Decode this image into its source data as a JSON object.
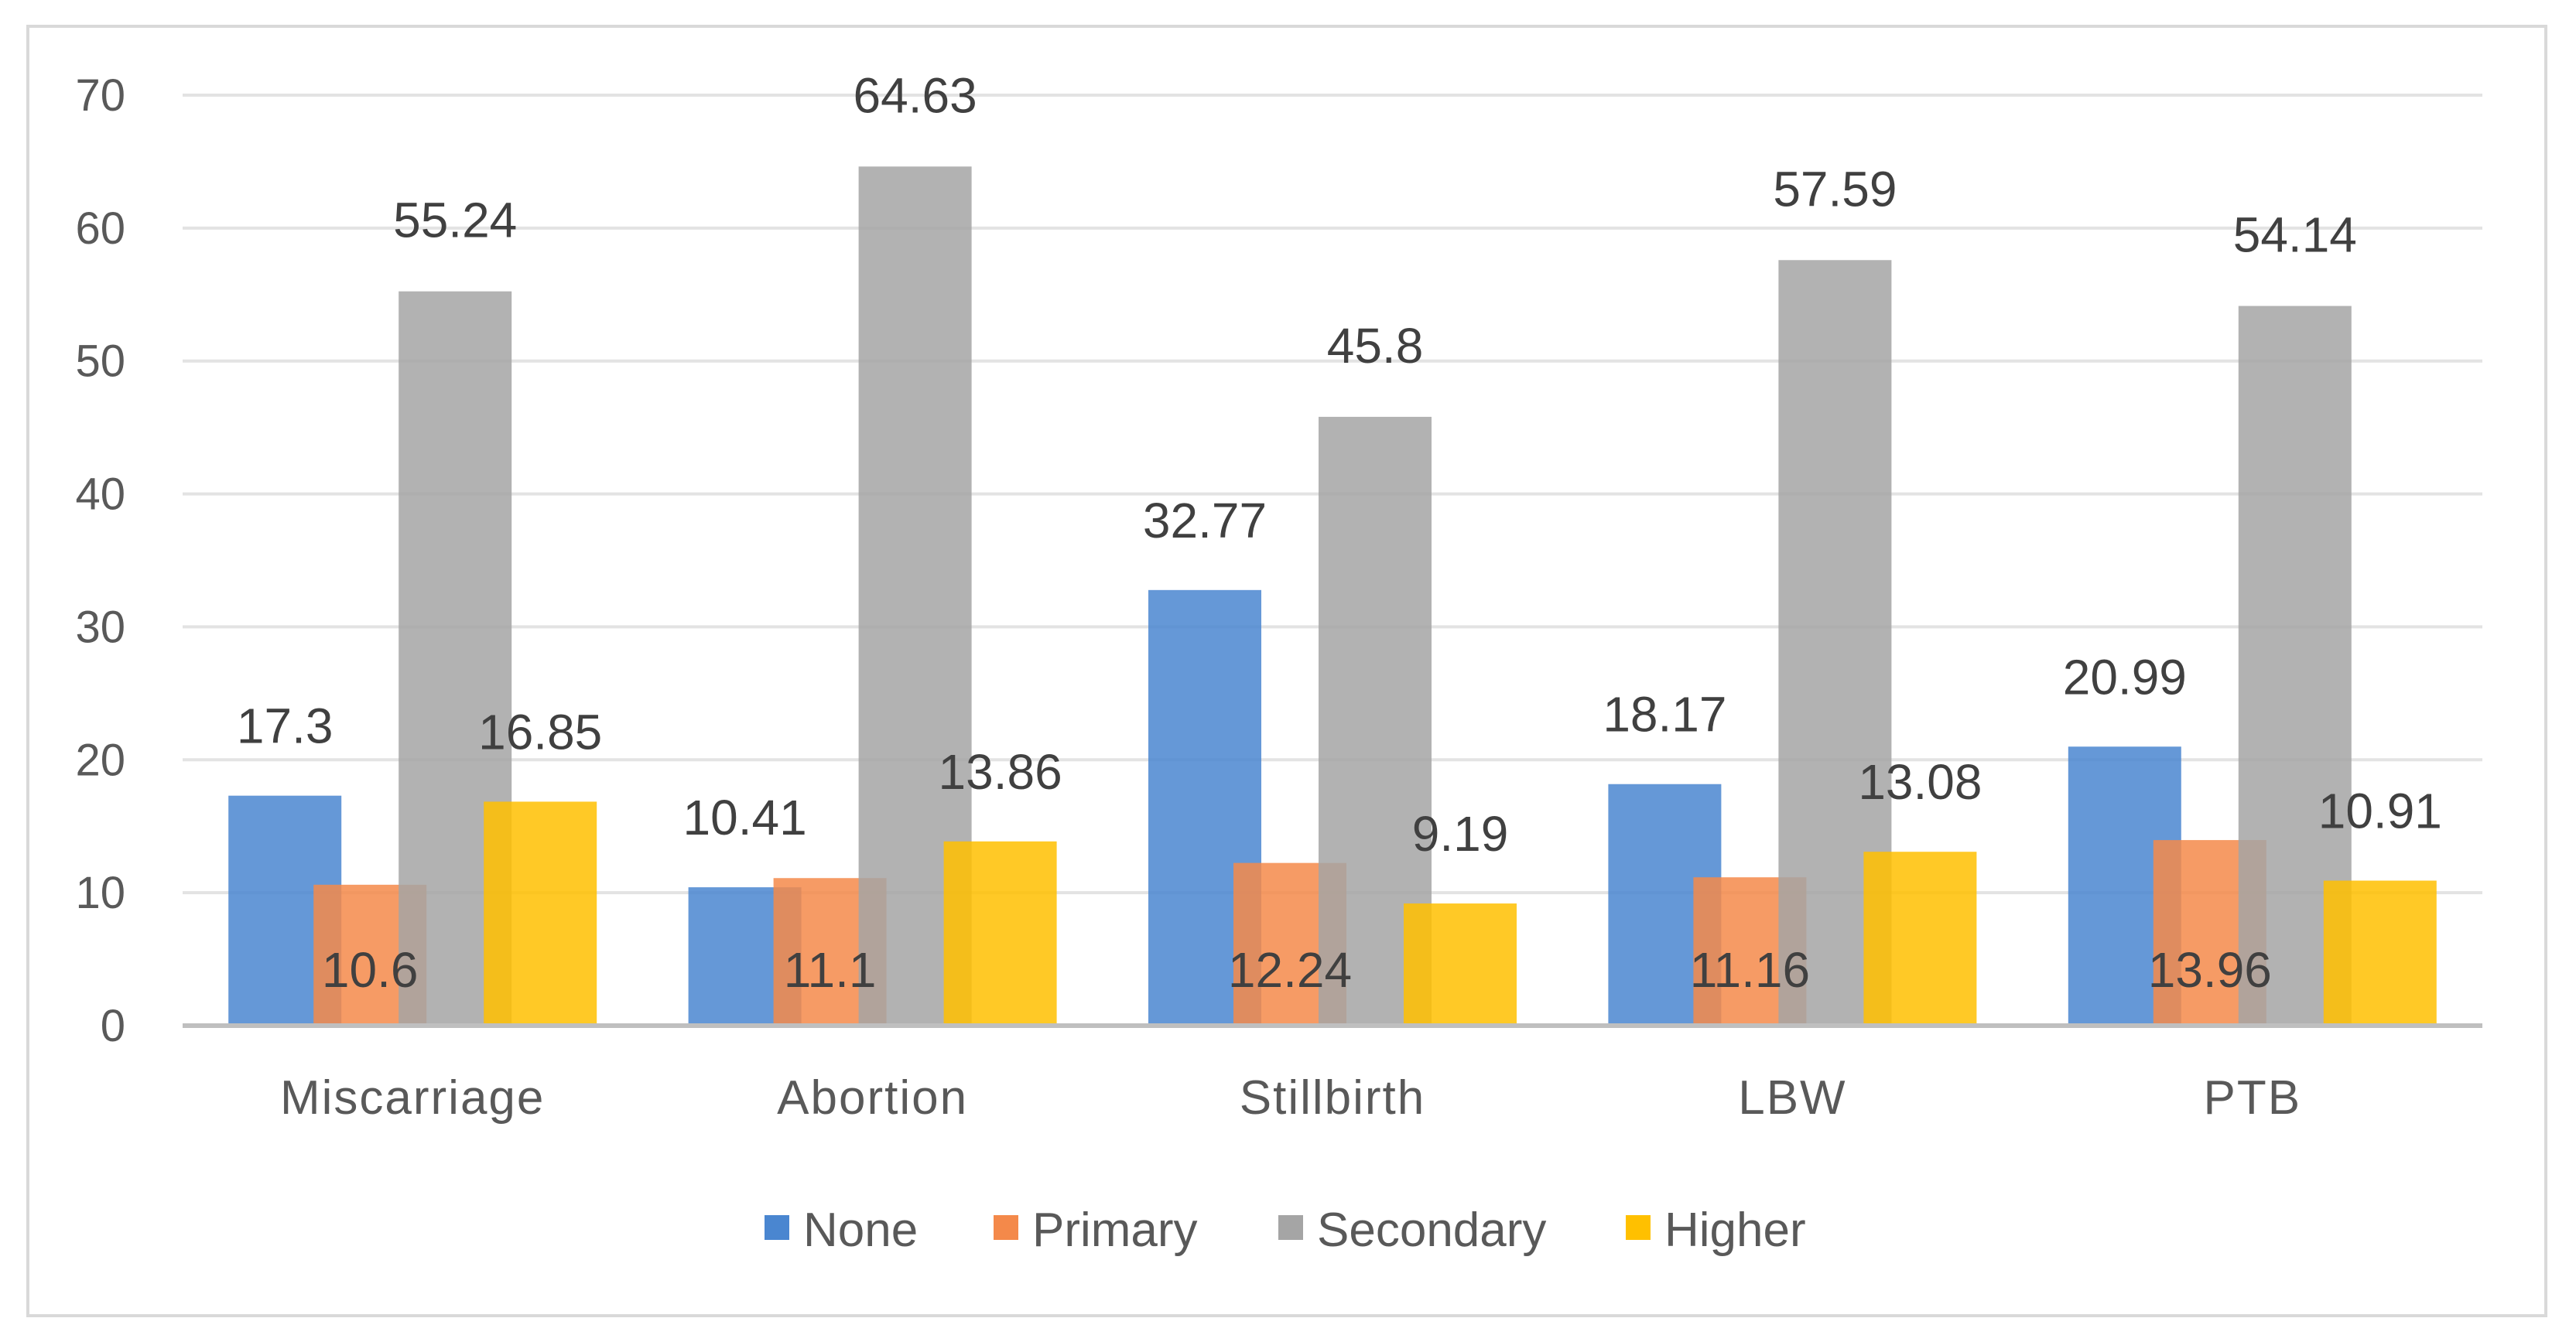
{
  "chart_data": {
    "type": "bar",
    "title": "",
    "xlabel": "",
    "ylabel": "",
    "ylim": [
      0,
      70
    ],
    "yticks": [
      0,
      10,
      20,
      30,
      40,
      50,
      60,
      70
    ],
    "grid": true,
    "legend_position": "bottom",
    "categories": [
      "Miscarriage",
      "Abortion",
      "Stillbirth",
      "LBW",
      "PTB"
    ],
    "series": [
      {
        "name": "None",
        "color": "#4a86d0",
        "values": [
          17.3,
          10.41,
          32.77,
          18.17,
          20.99
        ],
        "labels": [
          "17.3",
          "10.41",
          "32.77",
          "18.17",
          "20.99"
        ]
      },
      {
        "name": "Primary",
        "color": "#f4894a",
        "values": [
          10.6,
          11.1,
          12.24,
          11.16,
          13.96
        ],
        "labels": [
          "10.6",
          "11.1",
          "12.24",
          "11.16",
          "13.96"
        ]
      },
      {
        "name": "Secondary",
        "color": "#a5a5a5",
        "values": [
          55.24,
          64.63,
          45.8,
          57.59,
          54.14
        ],
        "labels": [
          "55.24",
          "64.63",
          "45.8",
          "57.59",
          "54.14"
        ]
      },
      {
        "name": "Higher",
        "color": "#ffc000",
        "values": [
          16.85,
          13.86,
          9.19,
          13.08,
          10.91
        ],
        "labels": [
          "16.85",
          "13.86",
          "9.19",
          "13.08",
          "10.91"
        ]
      }
    ]
  }
}
